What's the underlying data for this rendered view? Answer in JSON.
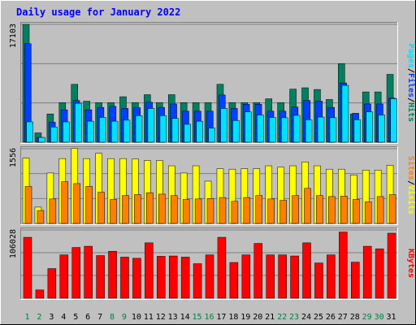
{
  "title": "Daily usage for January 2022",
  "colors": {
    "page_bg": "#C0C0C0",
    "title": "#0000FF",
    "hits": "#008060",
    "files": "#0040FF",
    "pages": "#00E0FF",
    "visits": "#FFFF00",
    "sites": "#FF8000",
    "kbytes": "#FF0000",
    "weekend_label": "#008040",
    "weekday_label": "#000000"
  },
  "legend": {
    "top": [
      "Pages",
      "Files",
      "Hits"
    ],
    "middle": [
      "Sites",
      "Visits"
    ],
    "bottom": [
      "KBytes"
    ],
    "separator": "/"
  },
  "chart_data": [
    {
      "type": "bar",
      "panel": "hits-files-pages",
      "axis_max_label": "17103",
      "ylim": [
        0,
        17103
      ],
      "categories": [
        "1",
        "2",
        "3",
        "4",
        "5",
        "6",
        "7",
        "8",
        "9",
        "10",
        "11",
        "12",
        "13",
        "14",
        "15",
        "16",
        "17",
        "18",
        "19",
        "20",
        "21",
        "22",
        "23",
        "24",
        "25",
        "26",
        "27",
        "28",
        "29",
        "30",
        "31"
      ],
      "series": [
        {
          "name": "Hits",
          "values": [
            17103,
            1350,
            4100,
            5750,
            8400,
            5950,
            5750,
            5750,
            6600,
            5750,
            6900,
            5750,
            6900,
            5750,
            5750,
            5750,
            8400,
            5750,
            5750,
            5750,
            6300,
            5750,
            7700,
            7900,
            7650,
            6200,
            11400,
            4100,
            7300,
            7300,
            9850
          ]
        },
        {
          "name": "Files",
          "values": [
            14300,
            700,
            2900,
            4700,
            6050,
            4700,
            5050,
            5200,
            4900,
            5000,
            5800,
            5050,
            5550,
            4500,
            4500,
            4500,
            6850,
            4900,
            5500,
            5500,
            4500,
            4500,
            5100,
            6050,
            5950,
            5050,
            8600,
            4200,
            5550,
            5550,
            6400
          ]
        },
        {
          "name": "Pages",
          "values": [
            2950,
            700,
            2200,
            2950,
            5650,
            3050,
            3600,
            3050,
            3200,
            3850,
            4900,
            3850,
            3450,
            2600,
            3050,
            2050,
            4900,
            3150,
            4400,
            3950,
            3600,
            3550,
            3900,
            3250,
            3650,
            3550,
            8250,
            3250,
            4400,
            3950,
            6300
          ]
        }
      ]
    },
    {
      "type": "bar",
      "panel": "visits-sites",
      "axis_max_label": "1556",
      "ylim": [
        0,
        1556
      ],
      "categories": [
        "1",
        "2",
        "3",
        "4",
        "5",
        "6",
        "7",
        "8",
        "9",
        "10",
        "11",
        "12",
        "13",
        "14",
        "15",
        "16",
        "17",
        "18",
        "19",
        "20",
        "21",
        "22",
        "23",
        "24",
        "25",
        "26",
        "27",
        "28",
        "29",
        "30",
        "31"
      ],
      "series": [
        {
          "name": "Visits",
          "values": [
            1360,
            340,
            1050,
            1350,
            1560,
            1350,
            1460,
            1350,
            1350,
            1340,
            1310,
            1310,
            1200,
            1050,
            1200,
            880,
            1140,
            1130,
            1140,
            1140,
            1200,
            1170,
            1200,
            1280,
            1200,
            1130,
            1130,
            1010,
            1110,
            1110,
            1210
          ]
        },
        {
          "name": "Sites",
          "values": [
            770,
            270,
            510,
            870,
            830,
            770,
            650,
            500,
            580,
            600,
            640,
            610,
            580,
            500,
            510,
            520,
            540,
            460,
            540,
            580,
            510,
            480,
            580,
            730,
            580,
            560,
            570,
            500,
            450,
            560,
            600
          ]
        }
      ]
    },
    {
      "type": "bar",
      "panel": "kbytes",
      "axis_max_label": "106028",
      "ylim": [
        0,
        106028
      ],
      "categories": [
        "1",
        "2",
        "3",
        "4",
        "5",
        "6",
        "7",
        "8",
        "9",
        "10",
        "11",
        "12",
        "13",
        "14",
        "15",
        "16",
        "17",
        "18",
        "19",
        "20",
        "21",
        "22",
        "23",
        "24",
        "25",
        "26",
        "27",
        "28",
        "29",
        "30",
        "31"
      ],
      "series": [
        {
          "name": "KBytes",
          "values": [
            94600,
            12800,
            46000,
            67300,
            78800,
            80700,
            66200,
            72900,
            63800,
            62000,
            86000,
            65100,
            65600,
            63800,
            53600,
            67300,
            94600,
            55500,
            67300,
            85100,
            67300,
            67300,
            65600,
            86000,
            54700,
            67300,
            102800,
            56000,
            80700,
            76700,
            101000
          ]
        }
      ]
    }
  ],
  "x_axis": {
    "days": [
      "1",
      "2",
      "3",
      "4",
      "5",
      "6",
      "7",
      "8",
      "9",
      "10",
      "11",
      "12",
      "13",
      "14",
      "15",
      "16",
      "17",
      "18",
      "19",
      "20",
      "21",
      "22",
      "23",
      "24",
      "25",
      "26",
      "27",
      "28",
      "29",
      "30",
      "31"
    ],
    "weekend_days": [
      1,
      2,
      8,
      9,
      15,
      16,
      22,
      23,
      29,
      30
    ]
  }
}
